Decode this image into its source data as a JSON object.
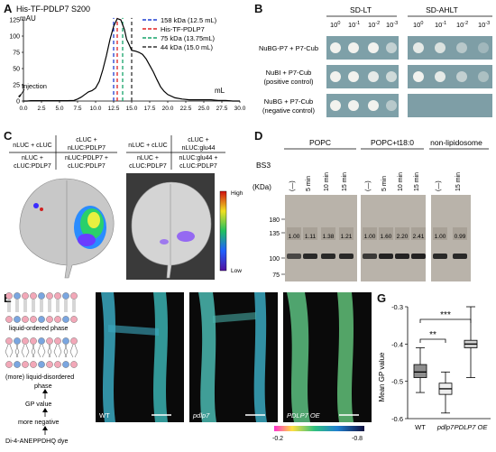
{
  "panels": {
    "a": "A",
    "b": "B",
    "c": "C",
    "d": "D",
    "e": "E",
    "f": "F",
    "g": "G"
  },
  "panel_a": {
    "title": "His-TF-PDLP7 S200",
    "yunit": "mAU",
    "xunit": "mL",
    "injection": "Injection",
    "legend": [
      {
        "label": "158 kDa (12.5 mL)",
        "color": "#1f3fd1"
      },
      {
        "label": "His-TF-PDLP7",
        "color": "#e02020"
      },
      {
        "label": "75 kDa (13.75mL)",
        "color": "#16a36a"
      },
      {
        "label": "44 kDa (15.0 mL)",
        "color": "#333333"
      }
    ],
    "yticks": [
      "0",
      "25",
      "50",
      "75",
      "100",
      "125"
    ],
    "xticks": [
      "0.0",
      "2.5",
      "5.0",
      "7.5",
      "10.0",
      "12.5",
      "15.0",
      "17.5",
      "20.0",
      "22.5",
      "25.0",
      "27.5",
      "30.0"
    ]
  },
  "chart_data": [
    {
      "type": "line",
      "title": "His-TF-PDLP7 S200",
      "xlabel": "mL",
      "ylabel": "mAU",
      "xlim": [
        0,
        30
      ],
      "ylim": [
        0,
        125
      ],
      "series": [
        {
          "name": "His-TF-PDLP7",
          "x": [
            0,
            0.5,
            1,
            2,
            3,
            4,
            5,
            6,
            7,
            7.5,
            8,
            8.5,
            9,
            9.5,
            10,
            10.5,
            11,
            11.5,
            12,
            12.5,
            13,
            13.5,
            14,
            14.3,
            14.6,
            15,
            15.5,
            16,
            16.5,
            17,
            17.5,
            18,
            18.5,
            19,
            19.5,
            20,
            21,
            22,
            23,
            24,
            25,
            26,
            27,
            28,
            29,
            30
          ],
          "values": [
            0,
            0,
            0.5,
            0.5,
            0.5,
            0.5,
            0.5,
            0.5,
            1,
            3,
            6,
            10,
            14,
            16,
            20,
            30,
            48,
            70,
            95,
            115,
            127,
            125,
            110,
            95,
            88,
            78,
            77,
            75,
            72,
            65,
            55,
            45,
            33,
            22,
            15,
            10,
            5,
            3,
            2,
            2,
            2,
            2,
            1,
            1,
            0,
            0
          ]
        }
      ],
      "vlines": [
        {
          "label": "158 kDa (12.5 mL)",
          "x": 12.5
        },
        {
          "label": "His-TF-PDLP7",
          "x": 13.0
        },
        {
          "label": "75 kDa (13.75mL)",
          "x": 13.75
        },
        {
          "label": "44 kDa (15.0 mL)",
          "x": 15.0
        }
      ]
    },
    {
      "type": "bar",
      "title": "",
      "ylabel": "Mean GP value",
      "categories": [
        "WT",
        "pdlp7",
        "PDLP7 OE"
      ],
      "ylim": [
        -0.6,
        -0.3
      ],
      "series": [
        {
          "name": "median",
          "values": [
            -0.475,
            -0.52,
            -0.4
          ]
        }
      ],
      "boxes": [
        {
          "cat": "WT",
          "min": -0.53,
          "q1": -0.49,
          "median": -0.475,
          "q3": -0.455,
          "max": -0.41
        },
        {
          "cat": "pdlp7",
          "min": -0.585,
          "q1": -0.535,
          "median": -0.52,
          "q3": -0.505,
          "max": -0.475
        },
        {
          "cat": "PDLP7 OE",
          "min": -0.49,
          "q1": -0.41,
          "median": -0.4,
          "q3": -0.39,
          "max": -0.3
        }
      ],
      "yticks": [
        "-0.3",
        "-0.4",
        "-0.5",
        "-0.6"
      ],
      "significance": [
        {
          "pair": [
            "WT",
            "pdlp7"
          ],
          "label": "**"
        },
        {
          "pair": [
            "WT",
            "PDLP7 OE"
          ],
          "label": "***"
        }
      ]
    }
  ],
  "panel_b": {
    "col_sdlt": "SD-LT",
    "col_sdahlt": "SD-AHLT",
    "dilutions": [
      "10",
      "10",
      "10",
      "10"
    ],
    "exps": [
      "0",
      "-1",
      "-2",
      "-3"
    ],
    "rows": [
      {
        "label": "NuBG-P7 + P7-Cub"
      },
      {
        "label": "NuBI + P7-Cub",
        "sub": "(positive control)"
      },
      {
        "label": "NuBG + P7-Cub",
        "sub": "(negative control)"
      }
    ]
  },
  "panel_c": {
    "left": {
      "tl": "nLUC + cLUC",
      "tr": "cLUC +\nnLUC:PDLP7",
      "bl": "nLUC +\ncLUC:PDLP7",
      "br": "nLUC:PDLP7 +\ncLUC:PDLP7"
    },
    "right": {
      "tl": "nLUC + cLUC",
      "tr": "cLUC +\nnLUC:glu44",
      "bl": "nLUC +\ncLUC:PDLP7",
      "br": "nLUC:glu44 +\ncLUC:PDLP7"
    },
    "scale_high": "High",
    "scale_low": "Low"
  },
  "panel_d": {
    "groups": [
      "POPC",
      "POPC+t18:0",
      "non-lipidosome"
    ],
    "bs3": "BS3",
    "kda": "(KDa)",
    "lanes1": [
      "(—)",
      "5 min",
      "10 min",
      "15 min"
    ],
    "lanes2": [
      "(—)",
      "5 min",
      "10 min",
      "15 min"
    ],
    "lanes3": [
      "(—)",
      "15 min"
    ],
    "markers": [
      "180",
      "135",
      "100",
      "75"
    ],
    "ratios1": [
      "1.00",
      "1.11",
      "1.38",
      "1.21"
    ],
    "ratios2": [
      "1.00",
      "1.60",
      "2.20",
      "2.41"
    ],
    "ratios3": [
      "1.00",
      "0.99"
    ]
  },
  "panel_e": {
    "lo": "liquid-ordered phase",
    "ld": "(more) liquid-disordered",
    "phase": "phase",
    "gp": "GP value",
    "neg": "more negative",
    "dye": "Di-4-ANEPPDHQ dye"
  },
  "panel_f": {
    "labels": [
      "WT",
      "pdlp7",
      "PDLP7 OE"
    ],
    "scale_left": "-0.2",
    "scale_right": "-0.8"
  },
  "colors": {
    "red": "#e02020",
    "blue": "#1f3fd1",
    "green": "#16a36a",
    "dark": "#333333"
  }
}
